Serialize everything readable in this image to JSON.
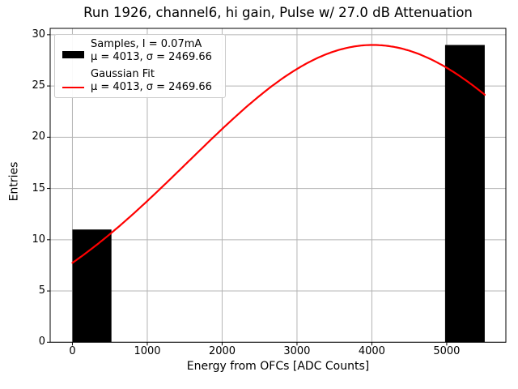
{
  "chart_data": {
    "type": "bar",
    "title": "Run 1926, channel6, hi gain, Pulse w/ 27.0 dB Attenuation",
    "xlabel": "Energy from OFCs [ADC Counts]",
    "ylabel": "Entries",
    "xlim": [
      -297,
      5790
    ],
    "ylim": [
      0,
      30.62
    ],
    "xticks": [
      0,
      1000,
      2000,
      3000,
      4000,
      5000
    ],
    "yticks": [
      0,
      5,
      10,
      15,
      20,
      25,
      30
    ],
    "grid": true,
    "grid_color": "#b4b4b4",
    "bar_color": "#000000",
    "fit_color": "#ff0000",
    "bins": [
      {
        "x0": 0,
        "x1": 521,
        "count": 11
      },
      {
        "x0": 4978,
        "x1": 5508,
        "count": 29
      }
    ],
    "gaussian_fit": {
      "amplitude": 29,
      "mu": 4013,
      "sigma": 2469.66,
      "x_start": 0,
      "x_end": 5508
    },
    "legend_position": "upper-left"
  },
  "legend": {
    "entries": [
      {
        "swatch": "black-bar",
        "line1": "Samples, I = 0.07mA",
        "line2": "μ = 4013, σ = 2469.66"
      },
      {
        "swatch": "red-line",
        "line1": "Gaussian Fit",
        "line2": "μ = 4013, σ = 2469.66"
      }
    ]
  }
}
